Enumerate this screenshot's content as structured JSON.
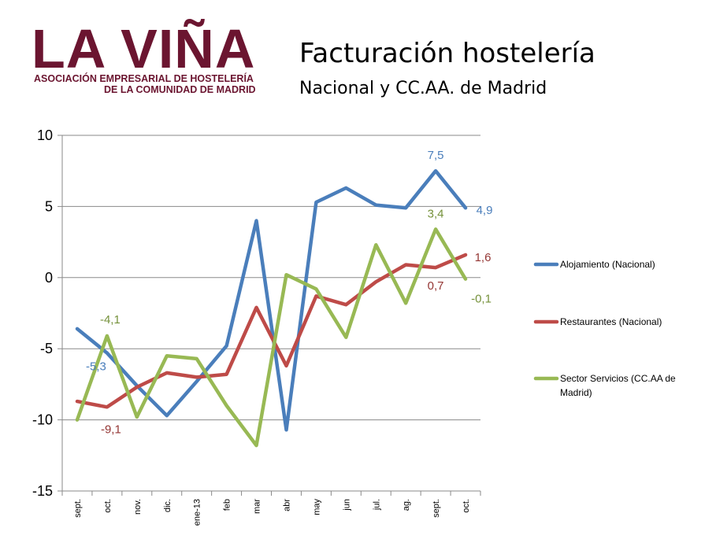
{
  "logo": {
    "main": "LA VIÑA",
    "sub1": "ASOCIACIÓN EMPRESARIAL DE HOSTELERÍA",
    "sub2": "DE LA COMUNIDAD DE MADRID"
  },
  "chart_data": {
    "type": "line",
    "title": "Facturación hostelería",
    "subtitle": "Nacional y CC.AA. de Madrid",
    "categories": [
      "sept.",
      "oct.",
      "nov.",
      "dic.",
      "ene-13",
      "feb",
      "mar",
      "abr",
      "may",
      "jun",
      "jul.",
      "ag.",
      "sept.",
      "oct."
    ],
    "ylim": [
      -15,
      10
    ],
    "yticks": [
      10,
      5,
      0,
      -5,
      -10,
      -15
    ],
    "grid": true,
    "legend_position": "right",
    "series": [
      {
        "name": "Alojamiento (Nacional)",
        "color": "#4a7ebb",
        "values": [
          -3.6,
          -5.3,
          -7.6,
          -9.7,
          -7.3,
          -4.8,
          4.0,
          -10.7,
          5.3,
          6.3,
          5.1,
          4.9,
          7.5,
          4.9
        ]
      },
      {
        "name": "Restaurantes (Nacional)",
        "color": "#be4b48",
        "values": [
          -8.7,
          -9.1,
          -7.7,
          -6.7,
          -7.0,
          -6.8,
          -2.1,
          -6.2,
          -1.3,
          -1.9,
          -0.3,
          0.9,
          0.7,
          1.6
        ]
      },
      {
        "name": "Sector Servicios (CC.AA de Madrid)",
        "color": "#98b954",
        "values": [
          -10.0,
          -4.1,
          -9.8,
          -5.5,
          -5.7,
          -9.0,
          -11.8,
          0.2,
          -0.8,
          -4.2,
          2.3,
          -1.8,
          3.4,
          -0.1
        ]
      }
    ],
    "data_labels": [
      {
        "series": 0,
        "index": 1,
        "text": "-5,3",
        "color": "#4a7ebb"
      },
      {
        "series": 0,
        "index": 12,
        "text": "7,5",
        "color": "#4a7ebb"
      },
      {
        "series": 0,
        "index": 13,
        "text": "4,9",
        "color": "#4a7ebb"
      },
      {
        "series": 1,
        "index": 1,
        "text": "-9,1",
        "color": "#943634"
      },
      {
        "series": 1,
        "index": 12,
        "text": "0,7",
        "color": "#943634"
      },
      {
        "series": 1,
        "index": 13,
        "text": "1,6",
        "color": "#943634"
      },
      {
        "series": 2,
        "index": 1,
        "text": "-4,1",
        "color": "#76923c"
      },
      {
        "series": 2,
        "index": 12,
        "text": "3,4",
        "color": "#76923c"
      },
      {
        "series": 2,
        "index": 13,
        "text": "-0,1",
        "color": "#76923c"
      }
    ]
  }
}
